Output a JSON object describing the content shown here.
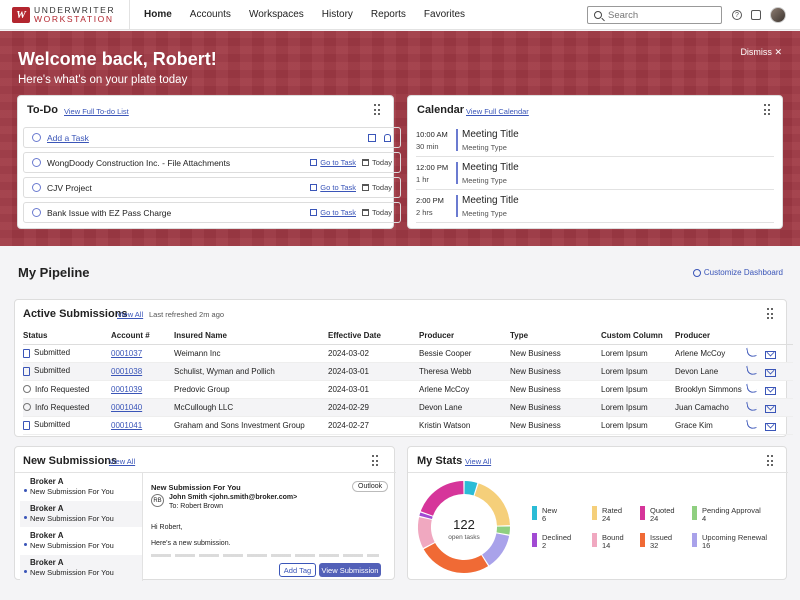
{
  "app": {
    "logo_line1": "UNDERWRITER",
    "logo_line2": "WORKSTATION",
    "logo_mark": "W"
  },
  "nav": {
    "items": [
      "Home",
      "Accounts",
      "Workspaces",
      "History",
      "Reports",
      "Favorites"
    ],
    "active": "Home"
  },
  "search": {
    "placeholder": "Search"
  },
  "hero": {
    "welcome": "Welcome back, Robert!",
    "subtitle": "Here's what's on your plate today",
    "dismiss": "Dismiss"
  },
  "todo": {
    "title": "To-Do",
    "link": "View Full To-do List",
    "add_task": "Add a Task",
    "goto_label": "Go to Task",
    "today_label": "Today",
    "items": [
      "WongDoody Construction Inc. - File Attachments",
      "CJV Project",
      "Bank Issue with EZ Pass Charge"
    ]
  },
  "calendar": {
    "title": "Calendar",
    "link": "View Full Calendar",
    "meetings": [
      {
        "time": "10:00 AM",
        "duration": "30 min",
        "title": "Meeting Title",
        "type": "Meeting Type"
      },
      {
        "time": "12:00 PM",
        "duration": "1 hr",
        "title": "Meeting Title",
        "type": "Meeting Type"
      },
      {
        "time": "2:00 PM",
        "duration": "2 hrs",
        "title": "Meeting Title",
        "type": "Meeting Type"
      }
    ]
  },
  "pipeline": {
    "title": "My Pipeline",
    "customize": "Customize Dashboard"
  },
  "submissions": {
    "title": "Active Submissions",
    "link": "View All",
    "refreshed": "Last refreshed 2m ago",
    "columns": [
      "Status",
      "Account #",
      "Insured Name",
      "Effective Date",
      "Producer",
      "Type",
      "Custom Column",
      "Producer"
    ],
    "rows": [
      [
        "Submitted",
        "0001037",
        "Weimann Inc",
        "2024-03-02",
        "Bessie Cooper",
        "New Business",
        "Lorem Ipsum",
        "Arlene McCoy"
      ],
      [
        "Submitted",
        "0001038",
        "Schulist, Wyman and Pollich",
        "2024-03-01",
        "Theresa Webb",
        "New Business",
        "Lorem Ipsum",
        "Devon Lane"
      ],
      [
        "Info Requested",
        "0001039",
        "Predovic Group",
        "2024-03-01",
        "Arlene McCoy",
        "New Business",
        "Lorem Ipsum",
        "Brooklyn Simmons"
      ],
      [
        "Info Requested",
        "0001040",
        "McCullough LLC",
        "2024-02-29",
        "Devon Lane",
        "New Business",
        "Lorem Ipsum",
        "Juan Camacho"
      ],
      [
        "Submitted",
        "0001041",
        "Graham and Sons Investment Group",
        "2024-02-27",
        "Kristin Watson",
        "New Business",
        "Lorem Ipsum",
        "Grace Kim"
      ]
    ]
  },
  "new_submissions": {
    "title": "New Submissions",
    "link": "View All",
    "brokers": [
      {
        "name": "Broker A",
        "sub": "New Submission For You"
      },
      {
        "name": "Broker A",
        "sub": "New Submission For You"
      },
      {
        "name": "Broker A",
        "sub": "New Submission For You"
      },
      {
        "name": "Broker A",
        "sub": "New Submission For You"
      }
    ],
    "email": {
      "subject": "New Submission For You",
      "source": "Outlook",
      "initials": "RB",
      "from": "John Smith <john.smith@broker.com>",
      "to": "To: Robert Brown",
      "greeting": "Hi Robert,",
      "body": "Here's a new submission.",
      "add_tag": "Add Tag",
      "view_submission": "View Submission"
    }
  },
  "stats": {
    "title": "My Stats",
    "link": "View All",
    "center_value": "122",
    "center_label": "open tasks",
    "items": [
      {
        "label": "New",
        "value": 6,
        "color": "#2bbcd6"
      },
      {
        "label": "Rated",
        "value": 24,
        "color": "#f5cf7a"
      },
      {
        "label": "Quoted",
        "value": 24,
        "color": "#d6359a"
      },
      {
        "label": "Pending Approval",
        "value": 4,
        "color": "#8fcf80"
      },
      {
        "label": "Declined",
        "value": 2,
        "color": "#a14ad3"
      },
      {
        "label": "Bound",
        "value": 14,
        "color": "#f0a8c0"
      },
      {
        "label": "Issued",
        "value": 32,
        "color": "#f06a35"
      },
      {
        "label": "Upcoming Renewal",
        "value": 16,
        "color": "#a9a2ea"
      }
    ],
    "ring_order": [
      6,
      24,
      4,
      16,
      32,
      14,
      2,
      24
    ]
  }
}
